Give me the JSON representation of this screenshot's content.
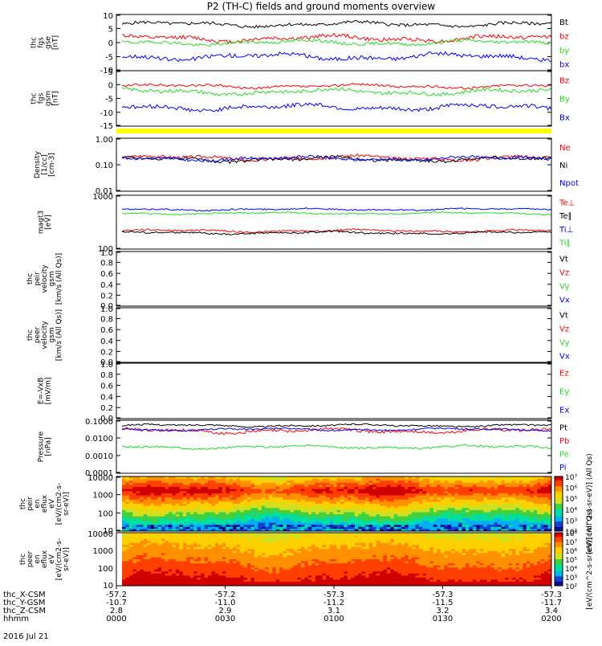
{
  "title": "P2 (TH-C) fields and ground moments overview",
  "date_label": "2016 Jul 21",
  "colors": {
    "black": "#000000",
    "red": "#ff0000",
    "green": "#22dd22",
    "blue": "#0000ff",
    "yellow": "#ffff00"
  },
  "chart_data": [
    {
      "type": "line",
      "id": "fgs_gse",
      "ylabel": [
        "thc",
        "fgs",
        "gse",
        "[nT]"
      ],
      "yticks": [
        "10",
        "5",
        "0",
        "-5",
        "-10"
      ],
      "ylim": [
        -10,
        10
      ],
      "scale": "linear",
      "series": [
        {
          "name": "Bt",
          "color": "black",
          "mean": 6.5,
          "amp": 1.2
        },
        {
          "name": "bz",
          "color": "red",
          "mean": 1.5,
          "amp": 1.5
        },
        {
          "name": "by",
          "color": "green",
          "mean": 0.0,
          "amp": 1.2
        },
        {
          "name": "bx",
          "color": "blue",
          "mean": -5.0,
          "amp": 1.6
        }
      ]
    },
    {
      "type": "line",
      "id": "fgs_gsm",
      "ylabel": [
        "thc",
        "fgs",
        "gsm",
        "[nT]"
      ],
      "yticks": [
        "5",
        "0",
        "-5",
        "-10",
        "-15"
      ],
      "ylim": [
        -17,
        8
      ],
      "scale": "linear",
      "series": [
        {
          "name": "Bz",
          "color": "red",
          "mean": 1.0,
          "amp": 1.2
        },
        {
          "name": "By",
          "color": "green",
          "mean": -1.5,
          "amp": 1.8
        },
        {
          "name": "Bx",
          "color": "blue",
          "mean": -8.5,
          "amp": 2.0
        }
      ]
    },
    {
      "type": "line",
      "id": "density",
      "ylabel": [
        "Density",
        "[1/cc]",
        "[cm-3]"
      ],
      "yticks": [
        "1.00",
        "0.10",
        "0.01"
      ],
      "ylim": [
        0.01,
        1
      ],
      "scale": "log",
      "series": [
        {
          "name": "Ne",
          "color": "red",
          "mean": 0.18,
          "amp": 0.25
        },
        {
          "name": "Ni",
          "color": "black",
          "mean": 0.16,
          "amp": 0.25
        },
        {
          "name": "Npot",
          "color": "blue",
          "mean": 0.17,
          "amp": 0.22
        }
      ]
    },
    {
      "type": "line",
      "id": "temperature",
      "ylabel": [
        "magt3",
        "[eV]"
      ],
      "yticks": [
        "1000",
        "100"
      ],
      "ylim": [
        30,
        5000
      ],
      "scale": "log",
      "series": [
        {
          "name": "Te⊥",
          "color": "red",
          "mean": 170,
          "amp": 0.15
        },
        {
          "name": "Te∥",
          "color": "black",
          "mean": 140,
          "amp": 0.15
        },
        {
          "name": "Ti⊥",
          "color": "blue",
          "mean": 1300,
          "amp": 0.12
        },
        {
          "name": "Ti∥",
          "color": "green",
          "mean": 900,
          "amp": 0.12
        }
      ]
    },
    {
      "type": "line",
      "id": "peir_vel",
      "ylabel": [
        "thc",
        "peir",
        "velocity",
        "gsm",
        "[km/s (All Qs)]"
      ],
      "yticks": [
        "1.0",
        "0.8",
        "0.6",
        "0.4",
        "0.2",
        "0.0"
      ],
      "ylim": [
        0,
        1
      ],
      "scale": "linear",
      "series": [
        {
          "name": "Vt",
          "color": "black"
        },
        {
          "name": "Vz",
          "color": "red"
        },
        {
          "name": "Vy",
          "color": "green"
        },
        {
          "name": "Vx",
          "color": "blue"
        }
      ]
    },
    {
      "type": "line",
      "id": "peer_vel",
      "ylabel": [
        "thc",
        "peer",
        "velocity",
        "gsm",
        "[km/s (All Qs)]"
      ],
      "yticks": [
        "1.0",
        "0.8",
        "0.6",
        "0.4",
        "0.2",
        "0.0"
      ],
      "ylim": [
        0,
        1
      ],
      "scale": "linear",
      "series": [
        {
          "name": "Vt",
          "color": "black"
        },
        {
          "name": "Vz",
          "color": "red"
        },
        {
          "name": "Vy",
          "color": "green"
        },
        {
          "name": "Vx",
          "color": "blue"
        }
      ]
    },
    {
      "type": "line",
      "id": "efield",
      "ylabel": [
        "E=-VxB",
        "[mV/m]"
      ],
      "yticks": [
        "1.0",
        "0.8",
        "0.6",
        "0.4",
        "0.2",
        "0.0"
      ],
      "ylim": [
        0,
        1
      ],
      "scale": "linear",
      "series": [
        {
          "name": "Ez",
          "color": "red"
        },
        {
          "name": "Ey",
          "color": "green"
        },
        {
          "name": "Ex",
          "color": "blue"
        }
      ]
    },
    {
      "type": "line",
      "id": "pressure",
      "ylabel": [
        "Pressure",
        "[nPa]"
      ],
      "yticks": [
        "0.1000",
        "0.0100",
        "0.0010",
        "0.0001"
      ],
      "ylim": [
        0.0001,
        0.1
      ],
      "scale": "log",
      "series": [
        {
          "name": "Pt",
          "color": "black",
          "mean": 0.05,
          "amp": 0.2
        },
        {
          "name": "Pb",
          "color": "red",
          "mean": 0.025,
          "amp": 0.35
        },
        {
          "name": "Pe",
          "color": "green",
          "mean": 0.003,
          "amp": 0.25
        },
        {
          "name": "Pi",
          "color": "blue",
          "mean": 0.03,
          "amp": 0.2
        }
      ]
    },
    {
      "type": "heatmap",
      "id": "peir_en",
      "ylabel": [
        "thc",
        "peir",
        "en",
        "eflux",
        "eV",
        "[eV/(cm2-s-",
        "sr-eV)]"
      ],
      "yticks": [
        "10000",
        "1000",
        "100",
        "10"
      ],
      "ylim": [
        5,
        30000
      ],
      "scale": "log",
      "colorbar": {
        "label": "[eV/(cm^2-s-sr-eV)] (All Qs)",
        "ticks": [
          "10⁷",
          "10⁶",
          "10⁵",
          "10⁴",
          "10³",
          "10²"
        ]
      }
    },
    {
      "type": "heatmap",
      "id": "peer_en",
      "ylabel": [
        "thc",
        "peer",
        "en",
        "eflux",
        "eV",
        "[eV/(cm2-s-",
        "sr-eV)]"
      ],
      "yticks": [
        "10000",
        "1000",
        "100",
        "10"
      ],
      "ylim": [
        5,
        30000
      ],
      "scale": "log",
      "colorbar": {
        "label": "[eV/(cm^2-s-sr-eV)] (All Qs)",
        "ticks": [
          "10⁸",
          "10⁷",
          "10⁶",
          "10⁵",
          "10⁴",
          "10³",
          "10²"
        ]
      }
    }
  ],
  "xaxis": {
    "rows": [
      {
        "label": "thc_X-CSM",
        "values": [
          "-57.2",
          "-57.2",
          "-57.3",
          "-57.3",
          "-57.3"
        ]
      },
      {
        "label": "thc_Y-GSM",
        "values": [
          "-10.7",
          "-11.0",
          "-11.2",
          "-11.5",
          "-11.7"
        ]
      },
      {
        "label": "thc_Z-CSM",
        "values": [
          "2.8",
          "2.9",
          "3.1",
          "3.2",
          "3.4"
        ]
      },
      {
        "label": "hhmm",
        "values": [
          "0000",
          "0030",
          "0100",
          "0130",
          "0200"
        ]
      }
    ]
  }
}
